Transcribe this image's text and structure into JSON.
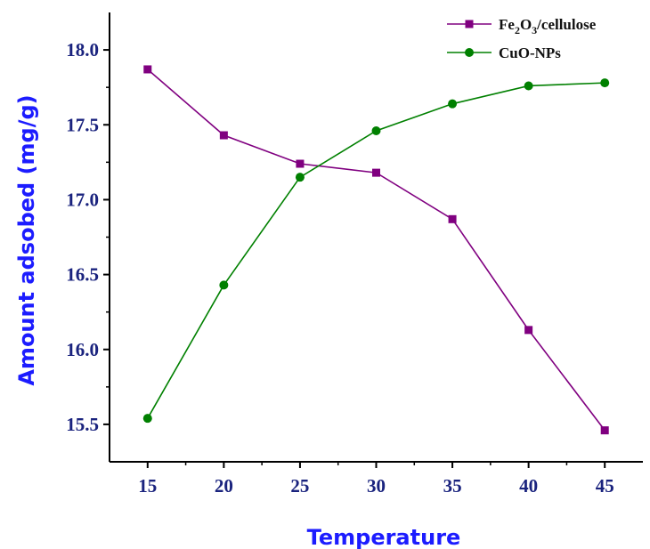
{
  "chart_data": {
    "type": "line",
    "xlabel": "Temperature",
    "ylabel": "Amount adsobed (mg/g)",
    "x": [
      15,
      20,
      25,
      30,
      35,
      40,
      45
    ],
    "xlim": [
      12.5,
      47.5
    ],
    "ylim": [
      15.25,
      18.25
    ],
    "xticks": [
      "15",
      "20",
      "25",
      "30",
      "35",
      "40",
      "45"
    ],
    "yticks": [
      "15.5",
      "16.0",
      "16.5",
      "17.0",
      "17.5",
      "18.0"
    ],
    "legend_position": "top-right",
    "grid": false,
    "series": [
      {
        "name": "Fe2O3/cellulose",
        "legend_parts": {
          "a": "Fe",
          "s1": "2",
          "b": "O",
          "s2": "3",
          "c": "/cellulose"
        },
        "marker": "square",
        "color": "#800080",
        "values": [
          17.87,
          17.43,
          17.24,
          17.18,
          16.87,
          16.13,
          15.46
        ]
      },
      {
        "name": "CuO-NPs",
        "marker": "circle",
        "color": "#008000",
        "values": [
          15.54,
          16.43,
          17.15,
          17.46,
          17.64,
          17.76,
          17.78
        ]
      }
    ]
  }
}
